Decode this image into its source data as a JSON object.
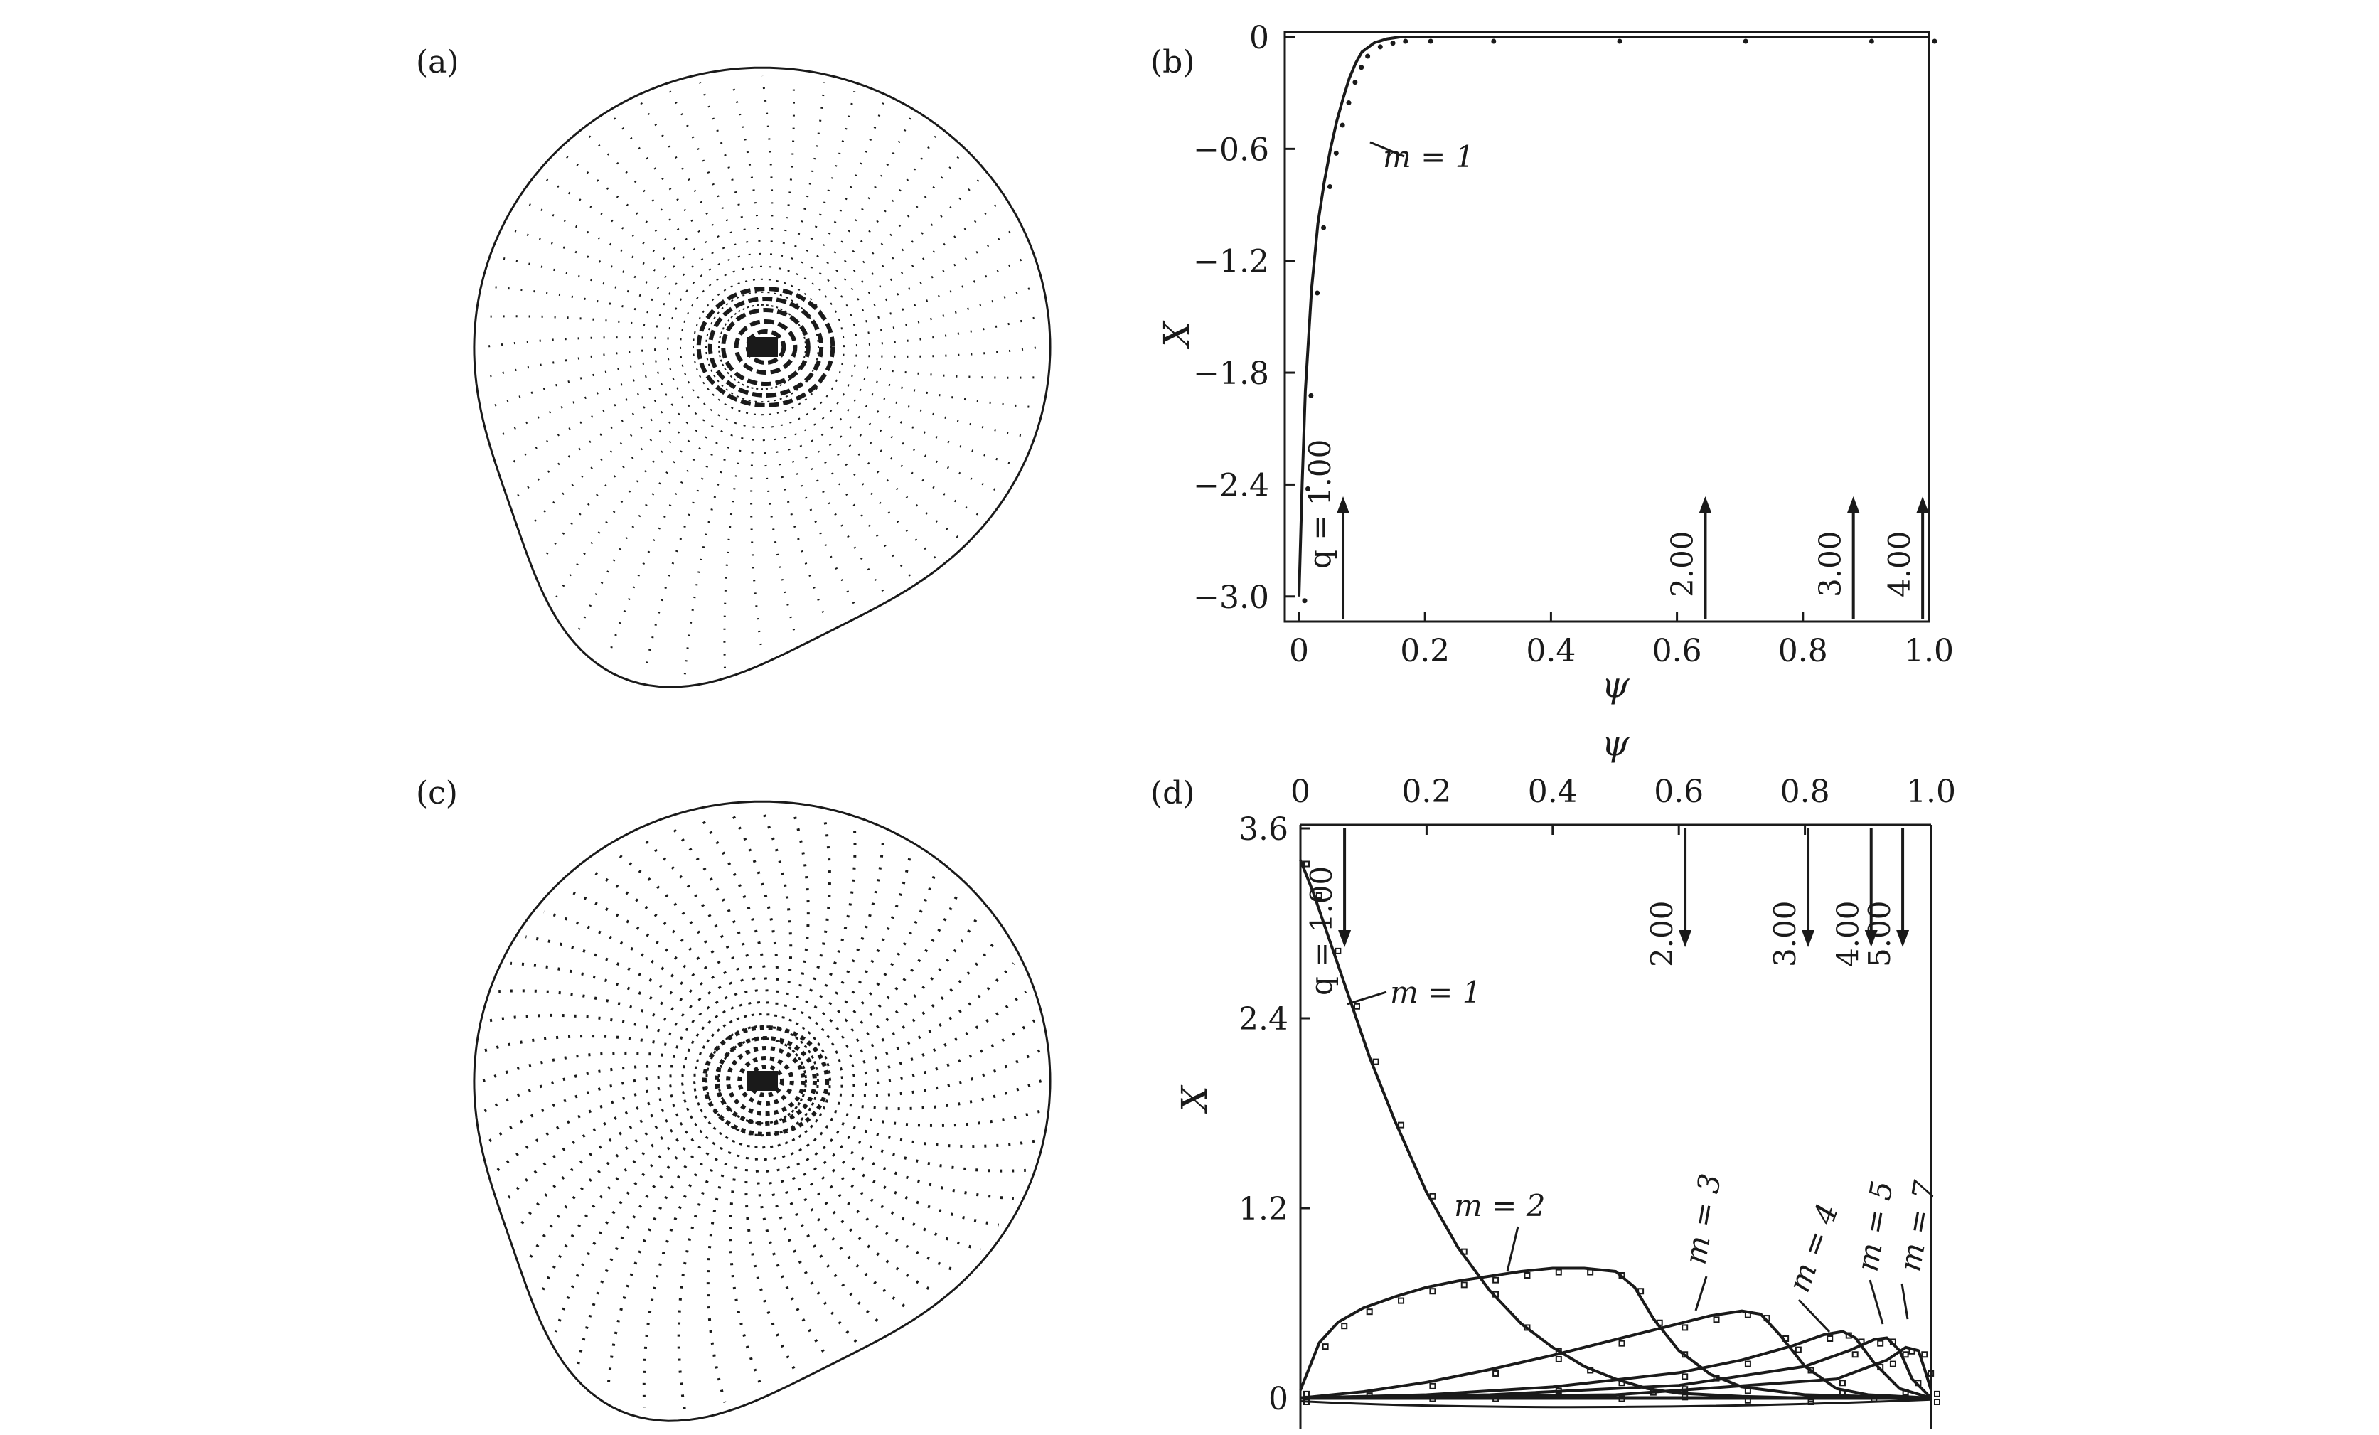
{
  "panels": {
    "a": {
      "label": "(a)"
    },
    "b": {
      "label": "(b)"
    },
    "c": {
      "label": "(c)"
    },
    "d": {
      "label": "(d)"
    }
  },
  "colors": {
    "ink": "#1a1a1a",
    "background": "#ffffff"
  },
  "chart_data": [
    {
      "panel": "(b)",
      "type": "line",
      "xlabel": "ψ",
      "ylabel": "X",
      "xlim": [
        0,
        1.0
      ],
      "ylim": [
        -3.1,
        0
      ],
      "xticks": [
        "0",
        "0.2",
        "0.4",
        "0.6",
        "0.8",
        "1.0"
      ],
      "yticks": [
        "0",
        "−0.6",
        "−1.2",
        "−1.8",
        "−2.4",
        "−3.0"
      ],
      "series": [
        {
          "name": "m = 1",
          "x": [
            0,
            0.005,
            0.01,
            0.02,
            0.03,
            0.04,
            0.05,
            0.06,
            0.07,
            0.08,
            0.09,
            0.1,
            0.12,
            0.14,
            0.16,
            0.2,
            0.3,
            0.5,
            0.7,
            0.9,
            1.0
          ],
          "y": [
            -3.0,
            -2.4,
            -1.9,
            -1.35,
            -1.0,
            -0.78,
            -0.6,
            -0.45,
            -0.33,
            -0.22,
            -0.14,
            -0.08,
            -0.03,
            -0.01,
            0,
            0,
            0,
            0,
            0,
            0,
            0
          ]
        }
      ],
      "annotations": [
        {
          "text": "m = 1"
        },
        {
          "text": "q = 1.00",
          "x": 0.07
        },
        {
          "text": "2.00",
          "x": 0.645
        },
        {
          "text": "3.00",
          "x": 0.88
        },
        {
          "text": "4.00",
          "x": 0.99
        }
      ]
    },
    {
      "panel": "(d)",
      "type": "line",
      "xlabel": "ψ",
      "ylabel": "X",
      "xlim": [
        0,
        1.0
      ],
      "ylim": [
        -0.1,
        3.6
      ],
      "xticks": [
        "0",
        "0.2",
        "0.4",
        "0.6",
        "0.8",
        "1.0"
      ],
      "yticks": [
        "3.6",
        "2.4",
        "1.2",
        "0"
      ],
      "series": [
        {
          "name": "m = 1",
          "x": [
            0,
            0.02,
            0.05,
            0.08,
            0.11,
            0.15,
            0.2,
            0.25,
            0.3,
            0.35,
            0.4,
            0.45,
            0.5,
            0.55,
            0.6,
            0.7,
            0.8,
            1.0
          ],
          "y": [
            3.4,
            3.2,
            2.85,
            2.5,
            2.15,
            1.75,
            1.3,
            0.95,
            0.68,
            0.47,
            0.32,
            0.2,
            0.12,
            0.06,
            0.03,
            0.01,
            0,
            0
          ]
        },
        {
          "name": "m = 2",
          "x": [
            0,
            0.03,
            0.06,
            0.1,
            0.15,
            0.2,
            0.25,
            0.3,
            0.35,
            0.4,
            0.45,
            0.5,
            0.53,
            0.56,
            0.6,
            0.65,
            0.7,
            0.8,
            1.0
          ],
          "y": [
            0.05,
            0.35,
            0.48,
            0.57,
            0.64,
            0.7,
            0.74,
            0.77,
            0.8,
            0.82,
            0.82,
            0.8,
            0.7,
            0.5,
            0.3,
            0.15,
            0.07,
            0.02,
            0
          ]
        },
        {
          "name": "m = 3",
          "x": [
            0,
            0.1,
            0.2,
            0.3,
            0.4,
            0.5,
            0.6,
            0.65,
            0.7,
            0.73,
            0.76,
            0.8,
            0.85,
            0.9,
            1.0
          ],
          "y": [
            0,
            0.04,
            0.1,
            0.18,
            0.27,
            0.37,
            0.47,
            0.52,
            0.55,
            0.53,
            0.4,
            0.2,
            0.06,
            0.02,
            0
          ]
        },
        {
          "name": "m = 4",
          "x": [
            0,
            0.2,
            0.4,
            0.6,
            0.7,
            0.78,
            0.83,
            0.86,
            0.88,
            0.91,
            0.95,
            1.0
          ],
          "y": [
            0,
            0.02,
            0.07,
            0.16,
            0.24,
            0.33,
            0.4,
            0.42,
            0.38,
            0.22,
            0.06,
            0
          ]
        },
        {
          "name": "m = 5",
          "x": [
            0,
            0.3,
            0.6,
            0.8,
            0.87,
            0.91,
            0.93,
            0.95,
            0.97,
            1.0
          ],
          "y": [
            0,
            0.02,
            0.08,
            0.2,
            0.3,
            0.37,
            0.38,
            0.3,
            0.12,
            0
          ]
        },
        {
          "name": "m = 7",
          "x": [
            0,
            0.5,
            0.85,
            0.93,
            0.96,
            0.98,
            0.99,
            1.0
          ],
          "y": [
            0,
            0.02,
            0.12,
            0.24,
            0.32,
            0.3,
            0.18,
            0.05
          ]
        }
      ],
      "annotations": [
        {
          "text": "q = 1.00",
          "x": 0.07
        },
        {
          "text": "2.00",
          "x": 0.61
        },
        {
          "text": "3.00",
          "x": 0.805
        },
        {
          "text": "4.00",
          "x": 0.905
        },
        {
          "text": "5.00",
          "x": 0.955
        },
        {
          "text": "m = 1"
        },
        {
          "text": "m = 2"
        },
        {
          "text": "m = 3"
        },
        {
          "text": "m = 4"
        },
        {
          "text": "m = 5"
        },
        {
          "text": "m = 7"
        }
      ]
    }
  ]
}
